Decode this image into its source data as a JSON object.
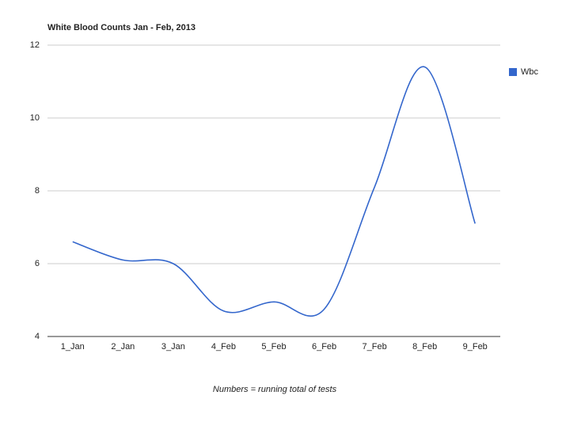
{
  "chart_data": {
    "type": "line",
    "title": "White Blood Counts Jan - Feb, 2013",
    "x_label": "Numbers = running total of tests",
    "categories": [
      "1_Jan",
      "2_Jan",
      "3_Jan",
      "4_Feb",
      "5_Feb",
      "6_Feb",
      "7_Feb",
      "8_Feb",
      "9_Feb"
    ],
    "series": [
      {
        "name": "Wbc",
        "color": "#3366cc",
        "values": [
          6.6,
          6.1,
          6.0,
          4.7,
          4.95,
          4.75,
          8.1,
          11.4,
          7.1
        ]
      }
    ],
    "ylim": [
      4,
      12
    ],
    "yticks": [
      4,
      6,
      8,
      10,
      12
    ],
    "grid": true,
    "smooth": true,
    "legend": "right"
  }
}
